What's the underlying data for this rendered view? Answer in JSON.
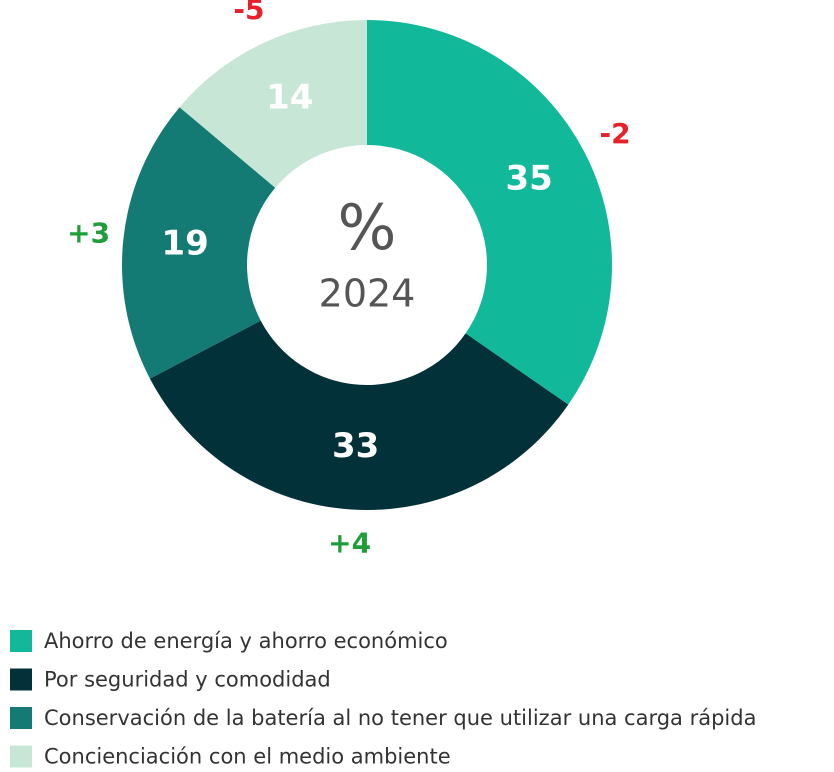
{
  "chart_data": {
    "type": "donut",
    "center_symbol": "%",
    "center_label": "2024",
    "categories": [
      "Ahorro de energía y ahorro económico",
      "Por seguridad y comodidad",
      "Conservación de la batería al no tener que utilizar una carga rápida",
      "Concienciación con el medio ambiente"
    ],
    "values": [
      35,
      33,
      19,
      14
    ],
    "colors": [
      "#12b89a",
      "#03313a",
      "#137a74",
      "#c8e6d6"
    ],
    "changes": [
      -2,
      4,
      3,
      -5
    ],
    "change_labels": [
      "-2",
      "+4",
      "+3",
      "-5"
    ],
    "change_colors": {
      "negative": "#e8202a",
      "positive": "#1f9e3a"
    }
  }
}
